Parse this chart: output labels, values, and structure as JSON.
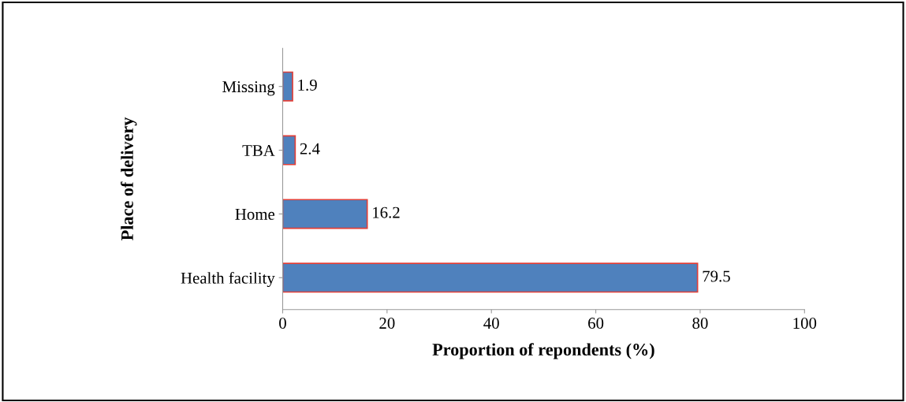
{
  "chart_data": {
    "type": "bar",
    "orientation": "horizontal",
    "xlabel": "Proportion of repondents (%)",
    "ylabel": "Place of delivery",
    "categories": [
      "Missing",
      "TBA",
      "Home",
      "Health facility"
    ],
    "values": [
      1.9,
      2.4,
      16.2,
      79.5
    ],
    "color": "#4f81bd",
    "xlim": [
      0,
      100
    ],
    "xticks": [
      0,
      20,
      40,
      60,
      80,
      100
    ],
    "data_labels": true,
    "grid": false
  }
}
